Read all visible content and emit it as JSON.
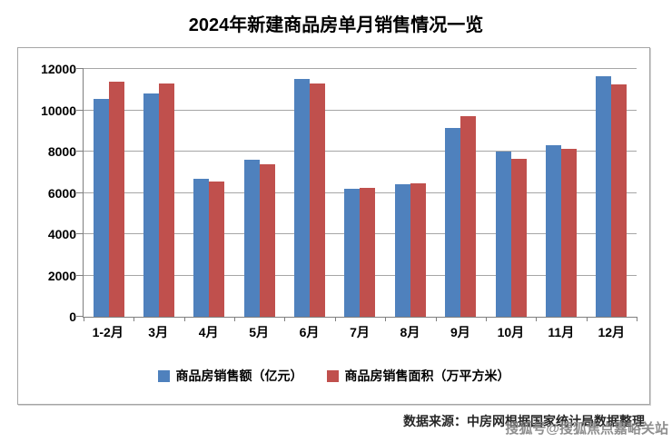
{
  "title": "2024年新建商品房单月销售情况一览",
  "chart_data": {
    "type": "bar",
    "title": "2024年新建商品房单月销售情况一览",
    "categories": [
      "1-2月",
      "3月",
      "4月",
      "5月",
      "6月",
      "7月",
      "8月",
      "9月",
      "10月",
      "11月",
      "12月"
    ],
    "series": [
      {
        "name": "商品房销售额（亿元）",
        "color": "#4F81BD",
        "values": [
          10550,
          10800,
          6700,
          7600,
          11500,
          6200,
          6400,
          9150,
          8000,
          8300,
          11650
        ]
      },
      {
        "name": "商品房销售面积（万平方米）",
        "color": "#C0504D",
        "values": [
          11400,
          11300,
          6550,
          7400,
          11300,
          6250,
          6450,
          9700,
          7650,
          8150,
          11250
        ]
      }
    ],
    "xlabel": "",
    "ylabel": "",
    "ylim": [
      0,
      12000
    ],
    "yticks": [
      0,
      2000,
      4000,
      6000,
      8000,
      10000,
      12000
    ],
    "grid": true,
    "legend_position": "bottom"
  },
  "footer": {
    "source": "数据来源：中房网根据国家统计局数据整理",
    "watermark": "搜狐号@搜狐焦点嘉峪关站"
  },
  "colors": {
    "series1": "#4F81BD",
    "series2": "#C0504D",
    "gridline": "#a6a6a6",
    "axis": "#7f7f7f",
    "frame_border": "#a6a6a6"
  }
}
